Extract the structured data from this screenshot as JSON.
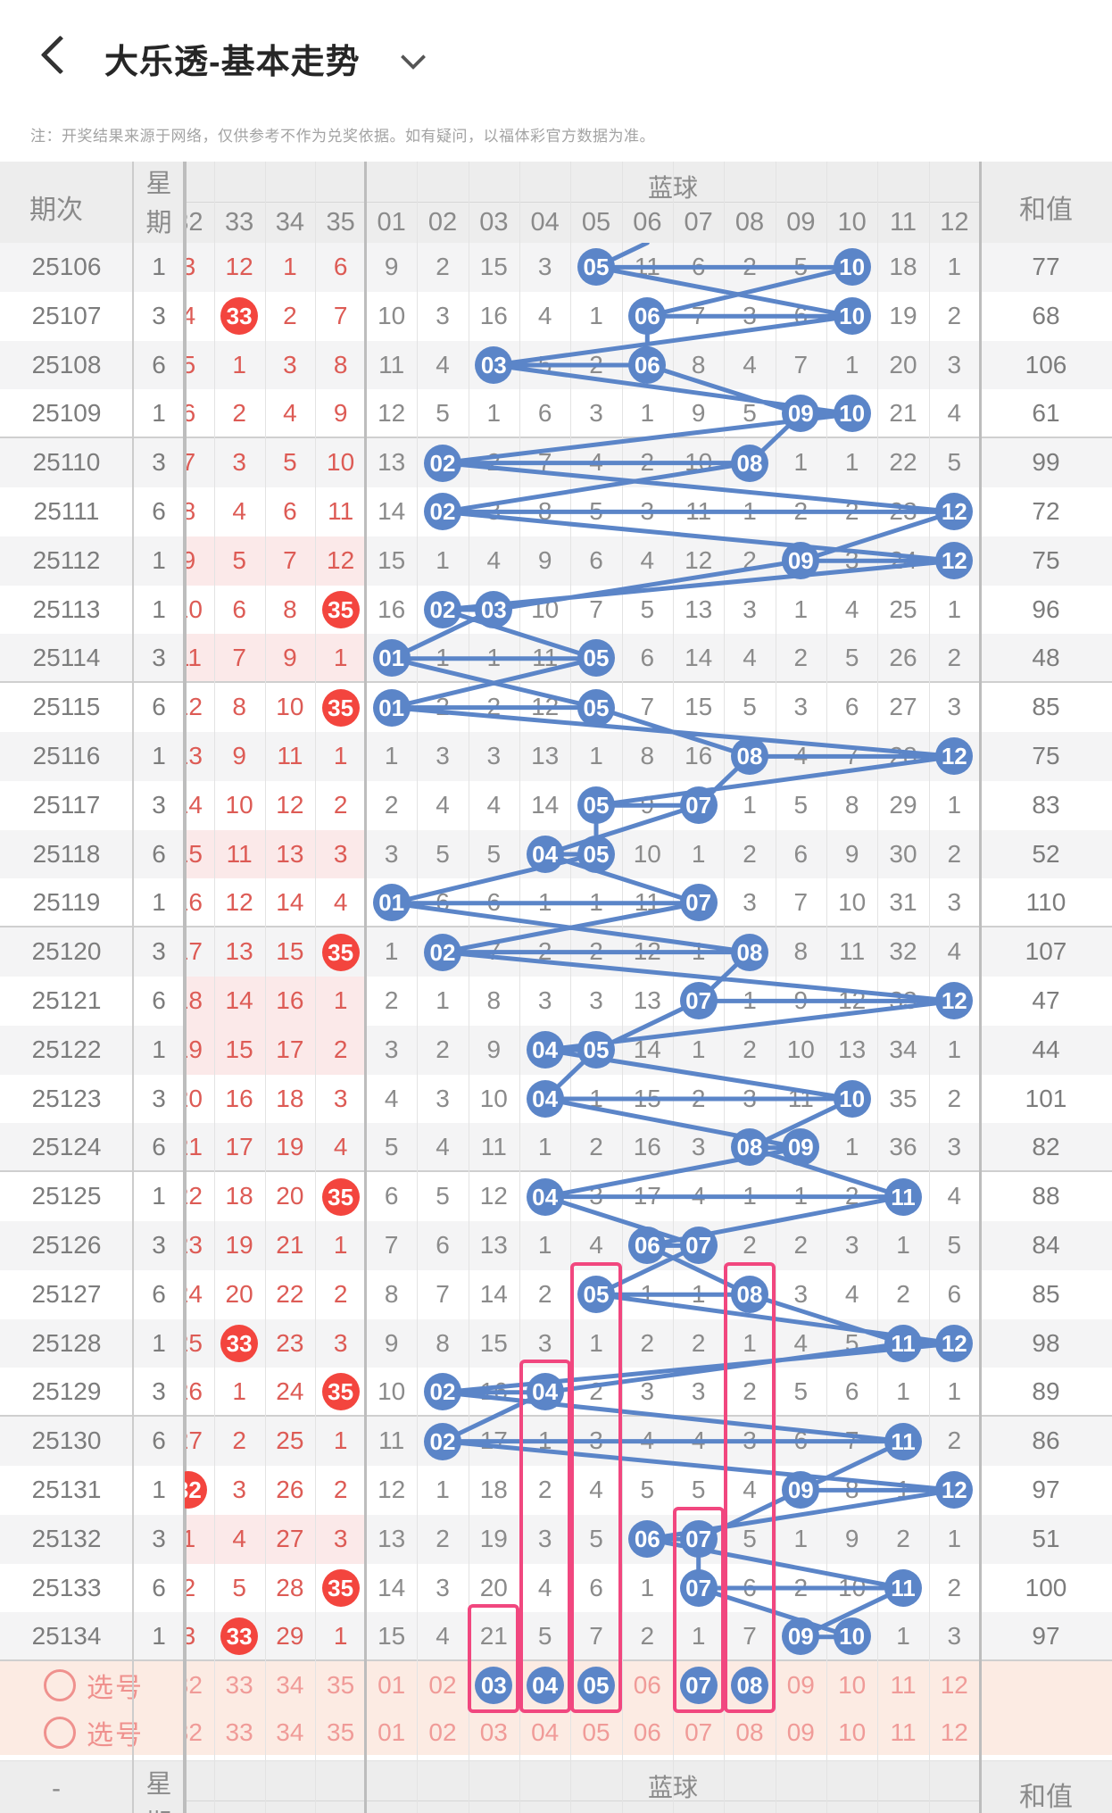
{
  "app": {
    "title": "大乐透-基本走势",
    "note": "注：开奖结果来源于网络，仅供参考不作为兑奖依据。如有疑问，以福体彩官方数据为准。"
  },
  "table": {
    "col_period": "期次",
    "col_week": "星期",
    "col_blue_group": "蓝球",
    "col_sum": "和值",
    "dash": "-",
    "red_cols": [
      "32",
      "33",
      "34",
      "35"
    ],
    "blue_cols": [
      "01",
      "02",
      "03",
      "04",
      "05",
      "06",
      "07",
      "08",
      "09",
      "10",
      "11",
      "12"
    ]
  },
  "colors": {
    "blue_ball": "#5b85c8",
    "red_ball": "#f3453e",
    "red_text": "#dd5b55",
    "gray_text": "#8b8b8b",
    "magenta_box": "#f1477f",
    "pick_pink": "#ef918e",
    "pick_bg": "#fcebe3",
    "hl_bg": "#fbe9e9"
  },
  "pick": {
    "label": "选号",
    "row1_selected": [
      2,
      3,
      4,
      6,
      7
    ],
    "boxes": [
      {
        "col": 2,
        "from_row": 28
      },
      {
        "col": 3,
        "from_row": 23
      },
      {
        "col": 4,
        "from_row": 21
      },
      {
        "col": 6,
        "from_row": 26
      },
      {
        "col": 7,
        "from_row": 21
      }
    ]
  },
  "rows": [
    {
      "p": "25106",
      "w": "1",
      "r": [
        "3",
        "12",
        "1",
        "6"
      ],
      "rd": [],
      "b": [
        "9",
        "2",
        "15",
        "3",
        "05",
        "11",
        "6",
        "2",
        "5",
        "10",
        "18",
        "1"
      ],
      "bd": [
        4,
        9
      ],
      "s": "77",
      "hl": false
    },
    {
      "p": "25107",
      "w": "3",
      "r": [
        "4",
        "33",
        "2",
        "7"
      ],
      "rd": [
        1
      ],
      "b": [
        "10",
        "3",
        "16",
        "4",
        "1",
        "06",
        "7",
        "3",
        "6",
        "10",
        "19",
        "2"
      ],
      "bd": [
        5,
        9
      ],
      "s": "68",
      "hl": false
    },
    {
      "p": "25108",
      "w": "6",
      "r": [
        "5",
        "1",
        "3",
        "8"
      ],
      "rd": [],
      "b": [
        "11",
        "4",
        "03",
        "5",
        "2",
        "06",
        "8",
        "4",
        "7",
        "1",
        "20",
        "3"
      ],
      "bd": [
        2,
        5
      ],
      "s": "106",
      "hl": false
    },
    {
      "p": "25109",
      "w": "1",
      "r": [
        "6",
        "2",
        "4",
        "9"
      ],
      "rd": [],
      "b": [
        "12",
        "5",
        "1",
        "6",
        "3",
        "1",
        "9",
        "5",
        "09",
        "10",
        "21",
        "4"
      ],
      "bd": [
        8,
        9
      ],
      "s": "61",
      "hl": false
    },
    {
      "p": "25110",
      "w": "3",
      "r": [
        "7",
        "3",
        "5",
        "10"
      ],
      "rd": [],
      "b": [
        "13",
        "02",
        "2",
        "7",
        "4",
        "2",
        "10",
        "08",
        "1",
        "1",
        "22",
        "5"
      ],
      "bd": [
        1,
        7
      ],
      "s": "99",
      "hl": false
    },
    {
      "p": "25111",
      "w": "6",
      "r": [
        "8",
        "4",
        "6",
        "11"
      ],
      "rd": [],
      "b": [
        "14",
        "02",
        "3",
        "8",
        "5",
        "3",
        "11",
        "1",
        "2",
        "2",
        "23",
        "12"
      ],
      "bd": [
        1,
        11
      ],
      "s": "72",
      "hl": false
    },
    {
      "p": "25112",
      "w": "1",
      "r": [
        "9",
        "5",
        "7",
        "12"
      ],
      "rd": [],
      "b": [
        "15",
        "1",
        "4",
        "9",
        "6",
        "4",
        "12",
        "2",
        "09",
        "3",
        "24",
        "12"
      ],
      "bd": [
        8,
        11
      ],
      "s": "75",
      "hl": true
    },
    {
      "p": "25113",
      "w": "1",
      "r": [
        "10",
        "6",
        "8",
        "35"
      ],
      "rd": [
        3
      ],
      "b": [
        "16",
        "02",
        "03",
        "10",
        "7",
        "5",
        "13",
        "3",
        "1",
        "4",
        "25",
        "1"
      ],
      "bd": [
        1,
        2
      ],
      "s": "96",
      "hl": false
    },
    {
      "p": "25114",
      "w": "3",
      "r": [
        "11",
        "7",
        "9",
        "1"
      ],
      "rd": [],
      "b": [
        "01",
        "1",
        "1",
        "11",
        "05",
        "6",
        "14",
        "4",
        "2",
        "5",
        "26",
        "2"
      ],
      "bd": [
        0,
        4
      ],
      "s": "48",
      "hl": true
    },
    {
      "p": "25115",
      "w": "6",
      "r": [
        "12",
        "8",
        "10",
        "35"
      ],
      "rd": [
        3
      ],
      "b": [
        "01",
        "2",
        "2",
        "12",
        "05",
        "7",
        "15",
        "5",
        "3",
        "6",
        "27",
        "3"
      ],
      "bd": [
        0,
        4
      ],
      "s": "85",
      "hl": false
    },
    {
      "p": "25116",
      "w": "1",
      "r": [
        "13",
        "9",
        "11",
        "1"
      ],
      "rd": [],
      "b": [
        "1",
        "3",
        "3",
        "13",
        "1",
        "8",
        "16",
        "08",
        "4",
        "7",
        "28",
        "12"
      ],
      "bd": [
        7,
        11
      ],
      "s": "75",
      "hl": false
    },
    {
      "p": "25117",
      "w": "3",
      "r": [
        "14",
        "10",
        "12",
        "2"
      ],
      "rd": [],
      "b": [
        "2",
        "4",
        "4",
        "14",
        "05",
        "9",
        "07",
        "1",
        "5",
        "8",
        "29",
        "1"
      ],
      "bd": [
        4,
        6
      ],
      "s": "83",
      "hl": false
    },
    {
      "p": "25118",
      "w": "6",
      "r": [
        "15",
        "11",
        "13",
        "3"
      ],
      "rd": [],
      "b": [
        "3",
        "5",
        "5",
        "04",
        "05",
        "10",
        "1",
        "2",
        "6",
        "9",
        "30",
        "2"
      ],
      "bd": [
        3,
        4
      ],
      "s": "52",
      "hl": true
    },
    {
      "p": "25119",
      "w": "1",
      "r": [
        "16",
        "12",
        "14",
        "4"
      ],
      "rd": [],
      "b": [
        "01",
        "6",
        "6",
        "1",
        "1",
        "11",
        "07",
        "3",
        "7",
        "10",
        "31",
        "3"
      ],
      "bd": [
        0,
        6
      ],
      "s": "110",
      "hl": false
    },
    {
      "p": "25120",
      "w": "3",
      "r": [
        "17",
        "13",
        "15",
        "35"
      ],
      "rd": [
        3
      ],
      "b": [
        "1",
        "02",
        "7",
        "2",
        "2",
        "12",
        "1",
        "08",
        "8",
        "11",
        "32",
        "4"
      ],
      "bd": [
        1,
        7
      ],
      "s": "107",
      "hl": false
    },
    {
      "p": "25121",
      "w": "6",
      "r": [
        "18",
        "14",
        "16",
        "1"
      ],
      "rd": [],
      "b": [
        "2",
        "1",
        "8",
        "3",
        "3",
        "13",
        "07",
        "1",
        "9",
        "12",
        "33",
        "12"
      ],
      "bd": [
        6,
        11
      ],
      "s": "47",
      "hl": true
    },
    {
      "p": "25122",
      "w": "1",
      "r": [
        "19",
        "15",
        "17",
        "2"
      ],
      "rd": [],
      "b": [
        "3",
        "2",
        "9",
        "04",
        "05",
        "14",
        "1",
        "2",
        "10",
        "13",
        "34",
        "1"
      ],
      "bd": [
        3,
        4
      ],
      "s": "44",
      "hl": true
    },
    {
      "p": "25123",
      "w": "3",
      "r": [
        "20",
        "16",
        "18",
        "3"
      ],
      "rd": [],
      "b": [
        "4",
        "3",
        "10",
        "04",
        "1",
        "15",
        "2",
        "3",
        "11",
        "10",
        "35",
        "2"
      ],
      "bd": [
        3,
        9
      ],
      "s": "101",
      "hl": false
    },
    {
      "p": "25124",
      "w": "6",
      "r": [
        "21",
        "17",
        "19",
        "4"
      ],
      "rd": [],
      "b": [
        "5",
        "4",
        "11",
        "1",
        "2",
        "16",
        "3",
        "08",
        "09",
        "1",
        "36",
        "3"
      ],
      "bd": [
        7,
        8
      ],
      "s": "82",
      "hl": false
    },
    {
      "p": "25125",
      "w": "1",
      "r": [
        "22",
        "18",
        "20",
        "35"
      ],
      "rd": [
        3
      ],
      "b": [
        "6",
        "5",
        "12",
        "04",
        "3",
        "17",
        "4",
        "1",
        "1",
        "2",
        "11",
        "4"
      ],
      "bd": [
        3,
        10
      ],
      "s": "88",
      "hl": false
    },
    {
      "p": "25126",
      "w": "3",
      "r": [
        "23",
        "19",
        "21",
        "1"
      ],
      "rd": [],
      "b": [
        "7",
        "6",
        "13",
        "1",
        "4",
        "06",
        "07",
        "2",
        "2",
        "3",
        "1",
        "5"
      ],
      "bd": [
        5,
        6
      ],
      "s": "84",
      "hl": false
    },
    {
      "p": "25127",
      "w": "6",
      "r": [
        "24",
        "20",
        "22",
        "2"
      ],
      "rd": [],
      "b": [
        "8",
        "7",
        "14",
        "2",
        "05",
        "1",
        "1",
        "08",
        "3",
        "4",
        "2",
        "6"
      ],
      "bd": [
        4,
        7
      ],
      "s": "85",
      "hl": false
    },
    {
      "p": "25128",
      "w": "1",
      "r": [
        "25",
        "33",
        "23",
        "3"
      ],
      "rd": [
        1
      ],
      "b": [
        "9",
        "8",
        "15",
        "3",
        "1",
        "2",
        "2",
        "1",
        "4",
        "5",
        "11",
        "12"
      ],
      "bd": [
        10,
        11
      ],
      "s": "98",
      "hl": false
    },
    {
      "p": "25129",
      "w": "3",
      "r": [
        "26",
        "1",
        "24",
        "35"
      ],
      "rd": [
        3
      ],
      "b": [
        "10",
        "02",
        "16",
        "04",
        "2",
        "3",
        "3",
        "2",
        "5",
        "6",
        "1",
        "1"
      ],
      "bd": [
        1,
        3
      ],
      "s": "89",
      "hl": false
    },
    {
      "p": "25130",
      "w": "6",
      "r": [
        "27",
        "2",
        "25",
        "1"
      ],
      "rd": [],
      "b": [
        "11",
        "02",
        "17",
        "1",
        "3",
        "4",
        "4",
        "3",
        "6",
        "7",
        "11",
        "2"
      ],
      "bd": [
        1,
        10
      ],
      "s": "86",
      "hl": false
    },
    {
      "p": "25131",
      "w": "1",
      "r": [
        "32",
        "3",
        "26",
        "2"
      ],
      "rd": [
        0
      ],
      "b": [
        "12",
        "1",
        "18",
        "2",
        "4",
        "5",
        "5",
        "4",
        "09",
        "8",
        "1",
        "12"
      ],
      "bd": [
        8,
        11
      ],
      "s": "97",
      "hl": false
    },
    {
      "p": "25132",
      "w": "3",
      "r": [
        "1",
        "4",
        "27",
        "3"
      ],
      "rd": [],
      "b": [
        "13",
        "2",
        "19",
        "3",
        "5",
        "06",
        "07",
        "5",
        "1",
        "9",
        "2",
        "1"
      ],
      "bd": [
        5,
        6
      ],
      "s": "51",
      "hl": true
    },
    {
      "p": "25133",
      "w": "6",
      "r": [
        "2",
        "5",
        "28",
        "35"
      ],
      "rd": [
        3
      ],
      "b": [
        "14",
        "3",
        "20",
        "4",
        "6",
        "1",
        "07",
        "6",
        "2",
        "10",
        "11",
        "2"
      ],
      "bd": [
        6,
        10
      ],
      "s": "100",
      "hl": false
    },
    {
      "p": "25134",
      "w": "1",
      "r": [
        "3",
        "33",
        "29",
        "1"
      ],
      "rd": [
        1
      ],
      "b": [
        "15",
        "4",
        "21",
        "5",
        "7",
        "2",
        "1",
        "7",
        "09",
        "10",
        "1",
        "3"
      ],
      "bd": [
        8,
        9
      ],
      "s": "97",
      "hl": false
    }
  ]
}
